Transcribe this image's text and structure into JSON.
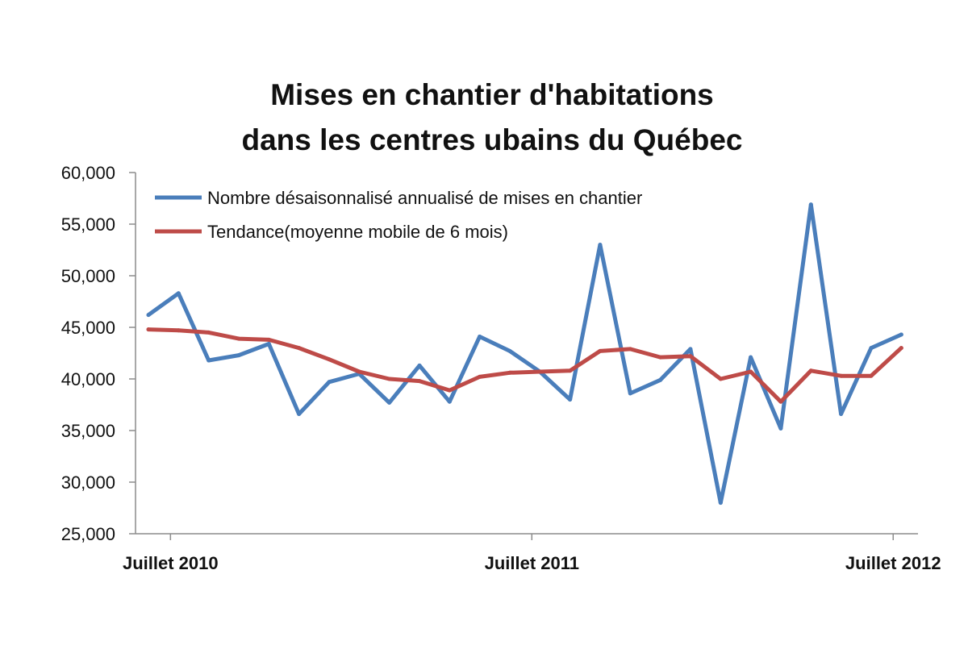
{
  "chart_data": {
    "type": "line",
    "title_lines": [
      "Mises en chantier d'habitations",
      "dans les centres ubains du Québec"
    ],
    "xlabel": "",
    "ylabel": "",
    "ylim": [
      25000,
      60000
    ],
    "y_ticks": [
      "25,000",
      "30,000",
      "35,000",
      "40,000",
      "45,000",
      "50,000",
      "55,000",
      "60,000"
    ],
    "x_tick_labels": [
      {
        "label": "Juillet 2010",
        "month": "2010-07"
      },
      {
        "label": "Juillet 2011",
        "month": "2011-07"
      },
      {
        "label": "Juillet 2012",
        "month": "2012-07"
      }
    ],
    "x": [
      "2010-06",
      "2010-07",
      "2010-08",
      "2010-09",
      "2010-10",
      "2010-11",
      "2010-12",
      "2011-01",
      "2011-02",
      "2011-03",
      "2011-04",
      "2011-05",
      "2011-06",
      "2011-07",
      "2011-08",
      "2011-09",
      "2011-10",
      "2011-11",
      "2011-12",
      "2012-01",
      "2012-02",
      "2012-03",
      "2012-04",
      "2012-05",
      "2012-06",
      "2012-07",
      "2012-08"
    ],
    "legend_position": "top-left",
    "grid": false,
    "series": [
      {
        "name": "Nombre désaisonnalisé annualisé de mises en chantier",
        "color": "#4a7ebb",
        "values": [
          46200,
          48300,
          41800,
          42300,
          43400,
          36600,
          39700,
          40500,
          37700,
          41300,
          37800,
          44100,
          42700,
          40700,
          38000,
          53000,
          38600,
          39900,
          42900,
          28000,
          42100,
          35200,
          56900,
          36600,
          43000,
          44300,
          null
        ]
      },
      {
        "name": "Tendance(moyenne mobile de 6 mois)",
        "color": "#be4b48",
        "values": [
          44800,
          44700,
          44500,
          43900,
          43800,
          43000,
          41900,
          40700,
          40000,
          39800,
          38900,
          40200,
          40600,
          40700,
          40800,
          42700,
          42900,
          42100,
          42200,
          40000,
          40700,
          37800,
          40800,
          40300,
          40300,
          43000,
          null
        ]
      }
    ]
  }
}
